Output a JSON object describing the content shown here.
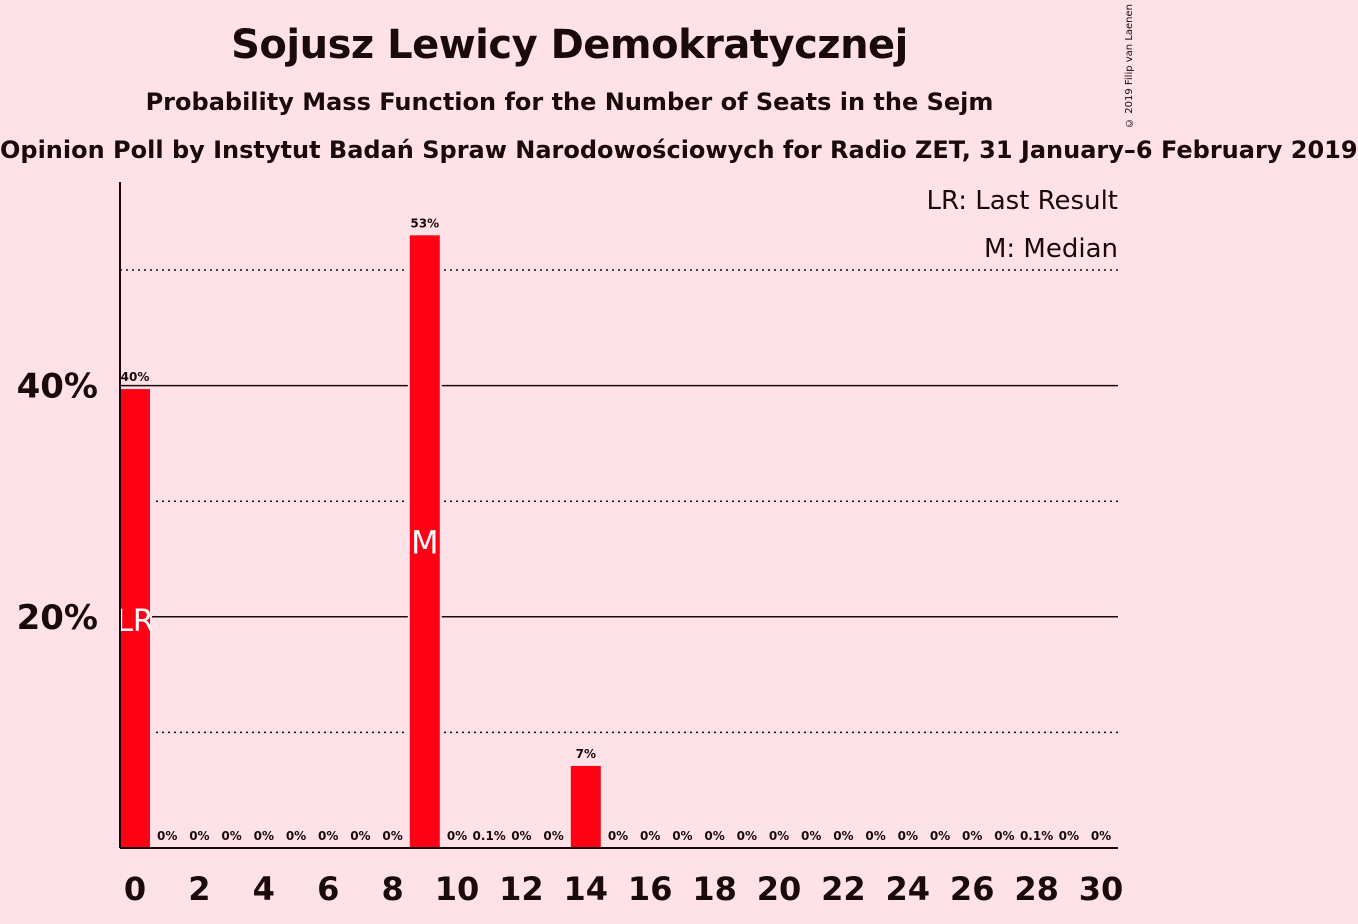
{
  "title": "Sojusz Lewicy Demokratycznej",
  "subtitle": "Probability Mass Function for the Number of Seats in the Sejm",
  "poll": "Opinion Poll by Instytut Badań Spraw Narodowościowych for Radio ZET, 31 January–6 February 2019",
  "copyright": "© 2019 Filip van Laenen",
  "legend": {
    "last_result": "LR: Last Result",
    "median": "M: Median"
  },
  "colors": {
    "bar": "#FF0015",
    "background": "#FFE2E7"
  },
  "chart_data": {
    "type": "bar",
    "title": "Sojusz Lewicy Demokratycznej",
    "xlabel": "",
    "ylabel": "",
    "ylim": [
      0,
      57
    ],
    "y_ticks": [
      "20%",
      "40%"
    ],
    "x_ticks": [
      "0",
      "2",
      "4",
      "6",
      "8",
      "10",
      "12",
      "14",
      "16",
      "18",
      "20",
      "22",
      "24",
      "26",
      "28",
      "30"
    ],
    "categories": [
      0,
      1,
      2,
      3,
      4,
      5,
      6,
      7,
      8,
      9,
      10,
      11,
      12,
      13,
      14,
      15,
      16,
      17,
      18,
      19,
      20,
      21,
      22,
      23,
      24,
      25,
      26,
      27,
      28,
      29,
      30
    ],
    "values": [
      39.7,
      0,
      0,
      0,
      0,
      0,
      0,
      0,
      0,
      53,
      0,
      0.1,
      0,
      0,
      7.1,
      0,
      0,
      0,
      0,
      0,
      0,
      0,
      0,
      0,
      0,
      0,
      0,
      0,
      0.1,
      0,
      0
    ],
    "labels": [
      "40%",
      "0%",
      "0%",
      "0%",
      "0%",
      "0%",
      "0%",
      "0%",
      "0%",
      "53%",
      "0%",
      "0.1%",
      "0%",
      "0%",
      "7%",
      "0%",
      "0%",
      "0%",
      "0%",
      "0%",
      "0%",
      "0%",
      "0%",
      "0%",
      "0%",
      "0%",
      "0%",
      "0%",
      "0.1%",
      "0%",
      "0%"
    ],
    "last_result": 0,
    "median": 9,
    "last_result_label": "LR",
    "median_label": "M"
  }
}
